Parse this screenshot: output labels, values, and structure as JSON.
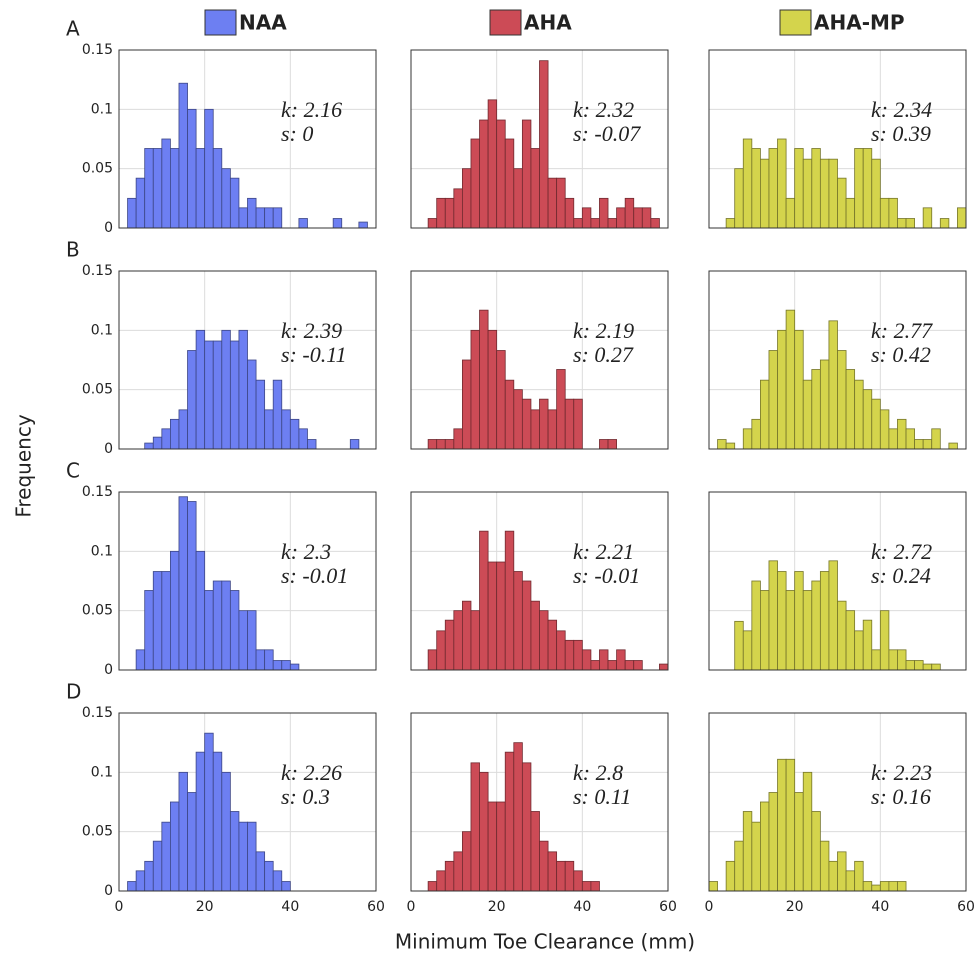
{
  "legend": [
    {
      "name": "NAA",
      "color": "#6d7ff2"
    },
    {
      "name": "AHA",
      "color": "#cc4b56"
    },
    {
      "name": "AHA-MP",
      "color": "#d4d44c"
    }
  ],
  "row_labels": [
    "A",
    "B",
    "C",
    "D"
  ],
  "ylabel": "Frequency",
  "xlabel": "Minimum Toe Clearance (mm)",
  "chart_data": [
    {
      "type": "histogram",
      "color": "#6d7ff2",
      "annotations": [
        "k: 2.16",
        "s: 0"
      ],
      "xlim": [
        0,
        60
      ],
      "ylim": [
        0,
        0.15
      ],
      "xticks": [
        0,
        20,
        40,
        60
      ],
      "yticks": [
        0,
        0.05,
        0.1,
        0.15
      ],
      "grid": true,
      "show_xtick_labels": false,
      "show_ytick_labels": true,
      "bins": [
        2,
        4,
        6,
        8,
        10,
        12,
        14,
        16,
        18,
        20,
        22,
        24,
        26,
        28,
        30,
        32,
        34,
        36,
        38,
        40,
        42,
        44,
        46,
        48,
        50,
        52,
        54,
        56,
        58
      ],
      "values": [
        0.025,
        0.042,
        0.067,
        0.067,
        0.075,
        0.067,
        0.122,
        0.1,
        0.067,
        0.1,
        0.067,
        0.05,
        0.042,
        0.017,
        0.025,
        0.017,
        0.017,
        0.017,
        0,
        0,
        0.008,
        0,
        0,
        0,
        0.008,
        0,
        0,
        0.005
      ]
    },
    {
      "type": "histogram",
      "color": "#cc4b56",
      "annotations": [
        "k: 2.32",
        "s: -0.07"
      ],
      "xlim": [
        0,
        60
      ],
      "ylim": [
        0,
        0.15
      ],
      "xticks": [
        0,
        20,
        40,
        60
      ],
      "yticks": [
        0,
        0.05,
        0.1,
        0.15
      ],
      "grid": true,
      "show_xtick_labels": false,
      "show_ytick_labels": false,
      "bins": [
        4,
        6,
        8,
        10,
        12,
        14,
        16,
        18,
        20,
        22,
        24,
        26,
        28,
        30,
        32,
        34,
        36,
        38,
        40,
        42,
        44,
        46,
        48,
        50,
        52,
        54,
        56,
        58
      ],
      "values": [
        0.008,
        0.025,
        0.025,
        0.033,
        0.05,
        0.075,
        0.091,
        0.108,
        0.091,
        0.075,
        0.05,
        0.091,
        0.067,
        0.141,
        0.042,
        0.042,
        0.025,
        0.008,
        0.017,
        0.008,
        0.025,
        0.008,
        0.017,
        0.025,
        0.017,
        0.017,
        0.008
      ]
    },
    {
      "type": "histogram",
      "color": "#d4d44c",
      "annotations": [
        "k: 2.34",
        "s: 0.39"
      ],
      "xlim": [
        0,
        60
      ],
      "ylim": [
        0,
        0.15
      ],
      "xticks": [
        0,
        20,
        40,
        60
      ],
      "yticks": [
        0,
        0.05,
        0.1,
        0.15
      ],
      "grid": true,
      "show_xtick_labels": false,
      "show_ytick_labels": false,
      "bins": [
        4,
        6,
        8,
        10,
        12,
        14,
        16,
        18,
        20,
        22,
        24,
        26,
        28,
        30,
        32,
        34,
        36,
        38,
        40,
        42,
        44,
        46,
        48,
        50,
        52,
        54,
        56,
        58,
        60
      ],
      "values": [
        0.008,
        0.05,
        0.075,
        0.067,
        0.058,
        0.067,
        0.075,
        0.025,
        0.067,
        0.058,
        0.067,
        0.058,
        0.058,
        0.042,
        0.025,
        0.067,
        0.067,
        0.058,
        0.025,
        0.025,
        0.008,
        0.008,
        0,
        0.017,
        0,
        0.008,
        0,
        0.017
      ]
    },
    {
      "type": "histogram",
      "color": "#6d7ff2",
      "annotations": [
        "k: 2.39",
        "s: -0.11"
      ],
      "xlim": [
        0,
        60
      ],
      "ylim": [
        0,
        0.15
      ],
      "xticks": [
        0,
        20,
        40,
        60
      ],
      "yticks": [
        0,
        0.05,
        0.1,
        0.15
      ],
      "grid": true,
      "show_xtick_labels": false,
      "show_ytick_labels": true,
      "bins": [
        6,
        8,
        10,
        12,
        14,
        16,
        18,
        20,
        22,
        24,
        26,
        28,
        30,
        32,
        34,
        36,
        38,
        40,
        42,
        44,
        46,
        48,
        50,
        52,
        54,
        56
      ],
      "values": [
        0.005,
        0.01,
        0.017,
        0.025,
        0.033,
        0.083,
        0.1,
        0.091,
        0.091,
        0.1,
        0.091,
        0.1,
        0.075,
        0.058,
        0.033,
        0.058,
        0.033,
        0.025,
        0.017,
        0.008,
        0,
        0,
        0,
        0,
        0.008
      ]
    },
    {
      "type": "histogram",
      "color": "#cc4b56",
      "annotations": [
        "k: 2.19",
        "s: 0.27"
      ],
      "xlim": [
        0,
        60
      ],
      "ylim": [
        0,
        0.15
      ],
      "xticks": [
        0,
        20,
        40,
        60
      ],
      "yticks": [
        0,
        0.05,
        0.1,
        0.15
      ],
      "grid": true,
      "show_xtick_labels": false,
      "show_ytick_labels": false,
      "bins": [
        4,
        6,
        8,
        10,
        12,
        14,
        16,
        18,
        20,
        22,
        24,
        26,
        28,
        30,
        32,
        34,
        36,
        38,
        40,
        42,
        44,
        46,
        48
      ],
      "values": [
        0.008,
        0.008,
        0.008,
        0.017,
        0.075,
        0.1,
        0.117,
        0.1,
        0.083,
        0.058,
        0.05,
        0.042,
        0.033,
        0.042,
        0.033,
        0.067,
        0.042,
        0.042,
        0,
        0,
        0.008,
        0.008
      ]
    },
    {
      "type": "histogram",
      "color": "#d4d44c",
      "annotations": [
        "k: 2.77",
        "s: 0.42"
      ],
      "xlim": [
        0,
        60
      ],
      "ylim": [
        0,
        0.15
      ],
      "xticks": [
        0,
        20,
        40,
        60
      ],
      "yticks": [
        0,
        0.05,
        0.1,
        0.15
      ],
      "grid": true,
      "show_xtick_labels": false,
      "show_ytick_labels": false,
      "bins": [
        2,
        4,
        6,
        8,
        10,
        12,
        14,
        16,
        18,
        20,
        22,
        24,
        26,
        28,
        30,
        32,
        34,
        36,
        38,
        40,
        42,
        44,
        46,
        48,
        50,
        52,
        54,
        56,
        58
      ],
      "values": [
        0.008,
        0.005,
        0,
        0.017,
        0.025,
        0.058,
        0.083,
        0.1,
        0.117,
        0.1,
        0.058,
        0.067,
        0.075,
        0.108,
        0.083,
        0.067,
        0.058,
        0.05,
        0.042,
        0.033,
        0.017,
        0.025,
        0.017,
        0.008,
        0.008,
        0.017,
        0,
        0.005
      ]
    },
    {
      "type": "histogram",
      "color": "#6d7ff2",
      "annotations": [
        "k: 2.3",
        "s: -0.01"
      ],
      "xlim": [
        0,
        60
      ],
      "ylim": [
        0,
        0.15
      ],
      "xticks": [
        0,
        20,
        40,
        60
      ],
      "yticks": [
        0,
        0.05,
        0.1,
        0.15
      ],
      "grid": true,
      "show_xtick_labels": false,
      "show_ytick_labels": true,
      "bins": [
        4,
        6,
        8,
        10,
        12,
        14,
        16,
        18,
        20,
        22,
        24,
        26,
        28,
        30,
        32,
        34,
        36,
        38,
        40,
        42
      ],
      "values": [
        0.017,
        0.067,
        0.083,
        0.083,
        0.1,
        0.146,
        0.142,
        0.1,
        0.067,
        0.075,
        0.075,
        0.067,
        0.05,
        0.05,
        0.017,
        0.017,
        0.008,
        0.008,
        0.005
      ]
    },
    {
      "type": "histogram",
      "color": "#cc4b56",
      "annotations": [
        "k: 2.21",
        "s: -0.01"
      ],
      "xlim": [
        0,
        60
      ],
      "ylim": [
        0,
        0.15
      ],
      "xticks": [
        0,
        20,
        40,
        60
      ],
      "yticks": [
        0,
        0.05,
        0.1,
        0.15
      ],
      "grid": true,
      "show_xtick_labels": false,
      "show_ytick_labels": false,
      "bins": [
        4,
        6,
        8,
        10,
        12,
        14,
        16,
        18,
        20,
        22,
        24,
        26,
        28,
        30,
        32,
        34,
        36,
        38,
        40,
        42,
        44,
        46,
        48,
        50,
        52,
        54,
        56,
        58,
        60
      ],
      "values": [
        0.017,
        0.033,
        0.042,
        0.05,
        0.058,
        0.05,
        0.117,
        0.091,
        0.091,
        0.117,
        0.083,
        0.075,
        0.058,
        0.05,
        0.042,
        0.033,
        0.025,
        0.025,
        0.017,
        0.008,
        0.017,
        0.008,
        0.017,
        0.008,
        0.008,
        0,
        0,
        0.005
      ]
    },
    {
      "type": "histogram",
      "color": "#d4d44c",
      "annotations": [
        "k: 2.72",
        "s: 0.24"
      ],
      "xlim": [
        0,
        60
      ],
      "ylim": [
        0,
        0.15
      ],
      "xticks": [
        0,
        20,
        40,
        60
      ],
      "yticks": [
        0,
        0.05,
        0.1,
        0.15
      ],
      "grid": true,
      "show_xtick_labels": false,
      "show_ytick_labels": false,
      "bins": [
        6,
        8,
        10,
        12,
        14,
        16,
        18,
        20,
        22,
        24,
        26,
        28,
        30,
        32,
        34,
        36,
        38,
        40,
        42,
        44,
        46,
        48,
        50,
        52,
        54
      ],
      "values": [
        0.041,
        0.033,
        0.075,
        0.067,
        0.092,
        0.083,
        0.067,
        0.083,
        0.067,
        0.075,
        0.083,
        0.092,
        0.058,
        0.05,
        0.033,
        0.042,
        0.017,
        0.05,
        0.017,
        0.017,
        0.008,
        0.008,
        0.005,
        0.005
      ]
    },
    {
      "type": "histogram",
      "color": "#6d7ff2",
      "annotations": [
        "k: 2.26",
        "s: 0.3"
      ],
      "xlim": [
        0,
        60
      ],
      "ylim": [
        0,
        0.15
      ],
      "xticks": [
        0,
        20,
        40,
        60
      ],
      "yticks": [
        0,
        0.05,
        0.1,
        0.15
      ],
      "grid": true,
      "show_xtick_labels": true,
      "show_ytick_labels": true,
      "bins": [
        2,
        4,
        6,
        8,
        10,
        12,
        14,
        16,
        18,
        20,
        22,
        24,
        26,
        28,
        30,
        32,
        34,
        36,
        38,
        40
      ],
      "values": [
        0.008,
        0.017,
        0.025,
        0.042,
        0.058,
        0.075,
        0.1,
        0.083,
        0.117,
        0.133,
        0.117,
        0.1,
        0.067,
        0.058,
        0.058,
        0.033,
        0.025,
        0.017,
        0.008
      ]
    },
    {
      "type": "histogram",
      "color": "#cc4b56",
      "annotations": [
        "k: 2.8",
        "s: 0.11"
      ],
      "xlim": [
        0,
        60
      ],
      "ylim": [
        0,
        0.15
      ],
      "xticks": [
        0,
        20,
        40,
        60
      ],
      "yticks": [
        0,
        0.05,
        0.1,
        0.15
      ],
      "grid": true,
      "show_xtick_labels": true,
      "show_ytick_labels": false,
      "bins": [
        4,
        6,
        8,
        10,
        12,
        14,
        16,
        18,
        20,
        22,
        24,
        26,
        28,
        30,
        32,
        34,
        36,
        38,
        40,
        42,
        44
      ],
      "values": [
        0.008,
        0.017,
        0.025,
        0.033,
        0.05,
        0.108,
        0.1,
        0.075,
        0.075,
        0.117,
        0.125,
        0.108,
        0.067,
        0.042,
        0.033,
        0.025,
        0.025,
        0.017,
        0.008,
        0.008
      ]
    },
    {
      "type": "histogram",
      "color": "#d4d44c",
      "annotations": [
        "k: 2.23",
        "s: 0.16"
      ],
      "xlim": [
        0,
        60
      ],
      "ylim": [
        0,
        0.15
      ],
      "xticks": [
        0,
        20,
        40,
        60
      ],
      "yticks": [
        0,
        0.05,
        0.1,
        0.15
      ],
      "grid": true,
      "show_xtick_labels": true,
      "show_ytick_labels": false,
      "bins": [
        0,
        2,
        4,
        6,
        8,
        10,
        12,
        14,
        16,
        18,
        20,
        22,
        24,
        26,
        28,
        30,
        32,
        34,
        36,
        38,
        40,
        42,
        44,
        46
      ],
      "values": [
        0.008,
        0,
        0.025,
        0.042,
        0.067,
        0.058,
        0.075,
        0.083,
        0.111,
        0.111,
        0.083,
        0.1,
        0.067,
        0.042,
        0.025,
        0.033,
        0.017,
        0.025,
        0.008,
        0.005,
        0.008,
        0.008,
        0.008
      ]
    }
  ]
}
